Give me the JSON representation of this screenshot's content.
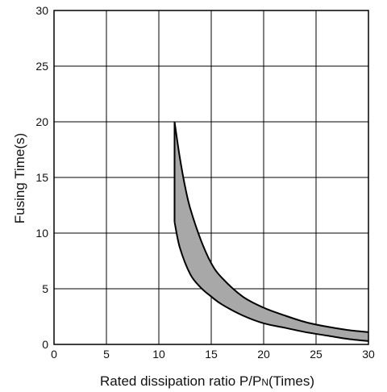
{
  "chart_data": {
    "type": "area",
    "xlabel_main": "Rated dissipation ratio P/P",
    "xlabel_sub": "N",
    "xlabel_tail": "(Times)",
    "ylabel": "Fusing Time(s)",
    "xlim": [
      0,
      30
    ],
    "ylim": [
      0,
      30
    ],
    "x_ticks": [
      "0",
      "5",
      "10",
      "15",
      "20",
      "25",
      "30"
    ],
    "y_ticks": [
      "0",
      "5",
      "10",
      "15",
      "20",
      "25",
      "30"
    ],
    "grid": true,
    "fill_color": "#a8a8a8",
    "line_color": "#000000",
    "series": [
      {
        "x": [
          11.5,
          12.0,
          12.5,
          13.0,
          14.0,
          15.0,
          16.0,
          18.0,
          20.0,
          22.0,
          24.0,
          26.0,
          28.0,
          30.0
        ],
        "values": [
          20.0,
          16.8,
          14.2,
          12.2,
          9.4,
          7.3,
          6.0,
          4.3,
          3.3,
          2.6,
          2.0,
          1.6,
          1.3,
          1.1
        ]
      },
      {
        "x": [
          11.5,
          12.0,
          13.0,
          14.0,
          15.0,
          16.0,
          18.0,
          20.0,
          22.0,
          24.0,
          26.0,
          28.0,
          30.0
        ],
        "values": [
          11.0,
          8.7,
          6.3,
          5.1,
          4.3,
          3.6,
          2.6,
          1.9,
          1.5,
          1.1,
          0.8,
          0.5,
          0.3
        ]
      }
    ]
  }
}
